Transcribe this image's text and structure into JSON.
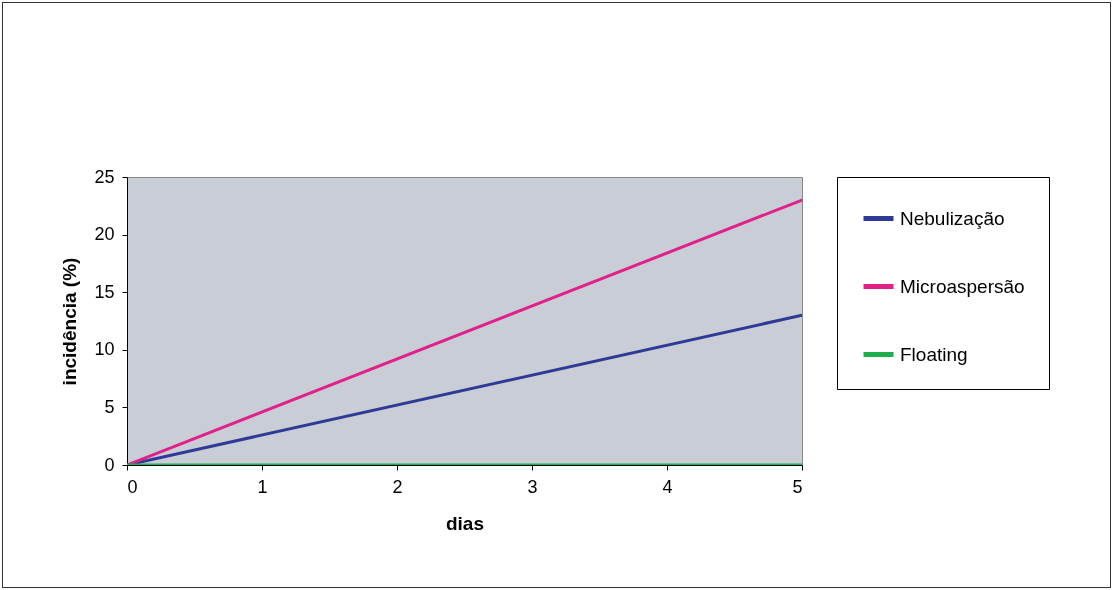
{
  "chart_data": {
    "type": "line",
    "xlabel": "dias",
    "ylabel": "incidência (%)",
    "x": [
      0,
      5
    ],
    "xlim": [
      0,
      5
    ],
    "xticks": [
      0,
      1,
      2,
      3,
      4,
      5
    ],
    "ylim": [
      0,
      25
    ],
    "yticks": [
      0,
      5,
      10,
      15,
      20,
      25
    ],
    "legend": "right",
    "series": [
      {
        "name": "Nebulização",
        "color": "#2e3a96",
        "values": [
          0,
          13
        ]
      },
      {
        "name": "Microaspersão",
        "color": "#e0218a",
        "values": [
          0,
          23
        ]
      },
      {
        "name": "Floating",
        "color": "#1fae4e",
        "values": [
          0,
          0
        ]
      }
    ]
  }
}
